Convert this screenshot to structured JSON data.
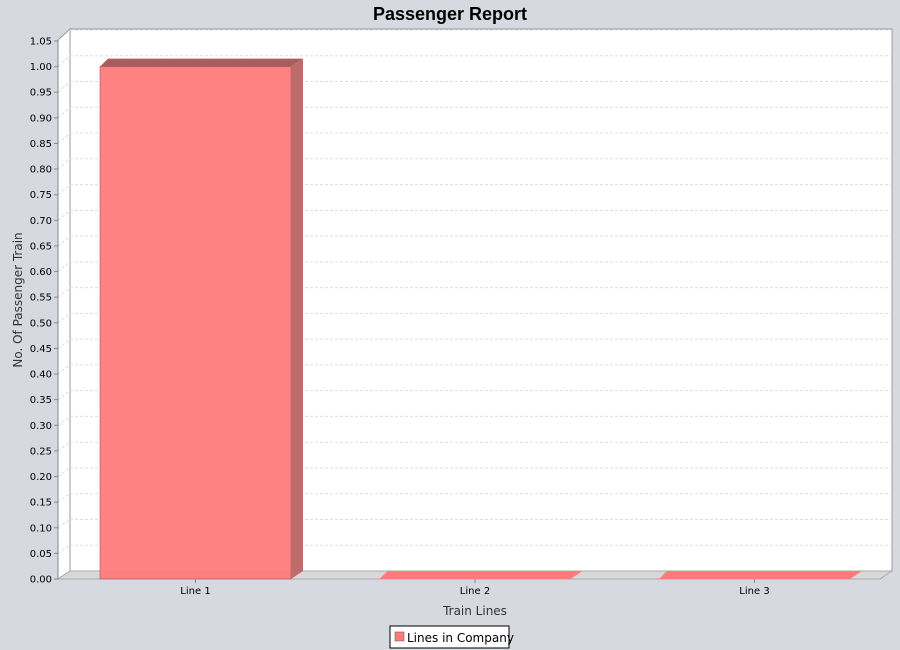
{
  "chart_data": {
    "type": "bar",
    "title": "Passenger Report",
    "xlabel": "Train Lines",
    "ylabel": "No. Of Passenger Train",
    "categories": [
      "Line 1",
      "Line 2",
      "Line 3"
    ],
    "series": [
      {
        "name": "Lines in Company",
        "values": [
          1.0,
          0.0,
          0.0
        ],
        "color": "#ff7b7b"
      }
    ],
    "ylim": [
      0,
      1.05
    ],
    "yticks": [
      "0.00",
      "0.05",
      "0.10",
      "0.15",
      "0.20",
      "0.25",
      "0.30",
      "0.35",
      "0.40",
      "0.45",
      "0.50",
      "0.55",
      "0.60",
      "0.65",
      "0.70",
      "0.75",
      "0.80",
      "0.85",
      "0.90",
      "0.95",
      "1.00",
      "1.05"
    ],
    "grid": true,
    "legend_position": "bottom-center",
    "colors": {
      "background": "#d6d9e0",
      "plot_background": "#ffffff",
      "bar": "#ff7b7b",
      "bar_side": "#bf6b6b",
      "bar_top": "#a85e5e",
      "floor": "#d8d8d8",
      "grid": "#dddddd"
    }
  }
}
